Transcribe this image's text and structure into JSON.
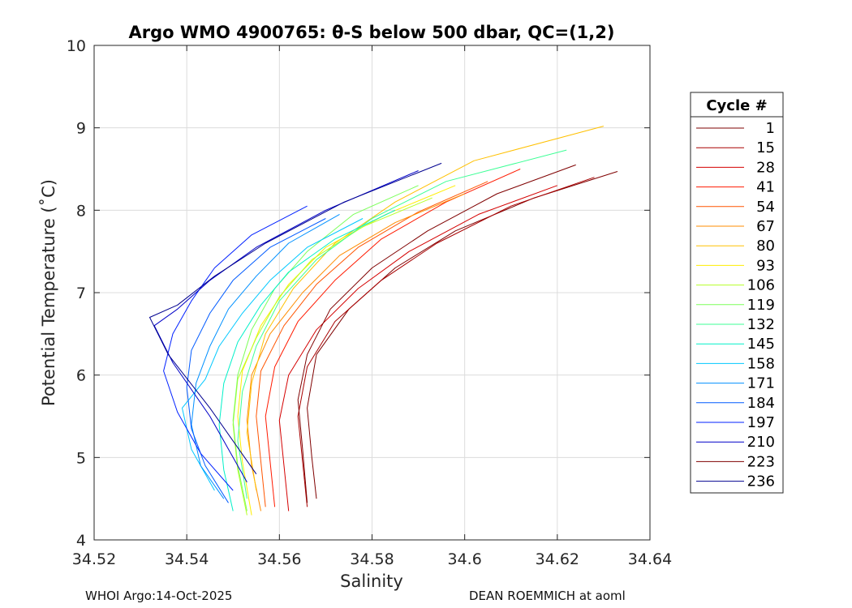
{
  "chart_data": {
    "type": "line",
    "title": "Argo WMO 4900765: θ-S below 500 dbar,  QC=(1,2)",
    "xlabel": "Salinity",
    "ylabel": "Potential Temperature (˚C)",
    "xlim": [
      34.52,
      34.64
    ],
    "ylim": [
      4,
      10
    ],
    "xticks": [
      34.52,
      34.54,
      34.56,
      34.58,
      34.6,
      34.62,
      34.64
    ],
    "xtick_labels": [
      "34.52",
      "34.54",
      "34.56",
      "34.58",
      "34.6",
      "34.62",
      "34.64"
    ],
    "yticks": [
      4,
      5,
      6,
      7,
      8,
      9,
      10
    ],
    "ytick_labels": [
      "4",
      "5",
      "6",
      "7",
      "8",
      "9",
      "10"
    ],
    "grid": true,
    "legend": {
      "title": "Cycle #",
      "placement": "right-outside",
      "entries": [
        {
          "label": "1",
          "color": "#7f0000"
        },
        {
          "label": "15",
          "color": "#a80000"
        },
        {
          "label": "28",
          "color": "#d40000"
        },
        {
          "label": "41",
          "color": "#ff1a00"
        },
        {
          "label": "54",
          "color": "#ff5500"
        },
        {
          "label": "67",
          "color": "#ff8c00"
        },
        {
          "label": "80",
          "color": "#ffc000"
        },
        {
          "label": "93",
          "color": "#ffee00"
        },
        {
          "label": "106",
          "color": "#b6ff28"
        },
        {
          "label": "119",
          "color": "#7cff5a"
        },
        {
          "label": "132",
          "color": "#3dff96"
        },
        {
          "label": "145",
          "color": "#00f0c8"
        },
        {
          "label": "158",
          "color": "#00c8ff"
        },
        {
          "label": "171",
          "color": "#0090ff"
        },
        {
          "label": "184",
          "color": "#005aff"
        },
        {
          "label": "197",
          "color": "#0020ff"
        },
        {
          "label": "210",
          "color": "#0000c8"
        },
        {
          "label": "223",
          "color": "#7f0000"
        },
        {
          "label": "236",
          "color": "#00008f"
        }
      ]
    },
    "series": [
      {
        "name": "1",
        "color": "#7f0000",
        "x": [
          34.633,
          34.615,
          34.598,
          34.585,
          34.575,
          34.568,
          34.566,
          34.567,
          34.568
        ],
        "y": [
          8.47,
          8.15,
          7.75,
          7.3,
          6.8,
          6.25,
          5.6,
          5.0,
          4.5
        ]
      },
      {
        "name": "15",
        "color": "#a80000",
        "x": [
          34.628,
          34.61,
          34.594,
          34.582,
          34.572,
          34.566,
          34.564,
          34.565,
          34.566
        ],
        "y": [
          8.4,
          8.05,
          7.6,
          7.15,
          6.65,
          6.1,
          5.5,
          4.95,
          4.4
        ]
      },
      {
        "name": "28",
        "color": "#d40000",
        "x": [
          34.62,
          34.603,
          34.588,
          34.577,
          34.568,
          34.562,
          34.56,
          34.561,
          34.562
        ],
        "y": [
          8.3,
          7.95,
          7.5,
          7.05,
          6.55,
          6.0,
          5.45,
          4.9,
          4.35
        ]
      },
      {
        "name": "41",
        "color": "#ff1a00",
        "x": [
          34.612,
          34.596,
          34.582,
          34.572,
          34.564,
          34.559,
          34.557,
          34.558,
          34.559
        ],
        "y": [
          8.5,
          8.1,
          7.65,
          7.15,
          6.65,
          6.1,
          5.5,
          4.95,
          4.4
        ]
      },
      {
        "name": "54",
        "color": "#ff5500",
        "x": [
          34.605,
          34.59,
          34.577,
          34.568,
          34.561,
          34.556,
          34.555,
          34.556,
          34.557
        ],
        "y": [
          8.35,
          7.98,
          7.55,
          7.1,
          6.6,
          6.05,
          5.5,
          4.95,
          4.4
        ]
      },
      {
        "name": "67",
        "color": "#ff8c00",
        "x": [
          34.6,
          34.585,
          34.573,
          34.565,
          34.558,
          34.554,
          34.553,
          34.554,
          34.556
        ],
        "y": [
          8.2,
          7.85,
          7.45,
          7.0,
          6.5,
          6.0,
          5.45,
          4.9,
          4.35
        ]
      },
      {
        "name": "80",
        "color": "#ffc000",
        "x": [
          34.63,
          34.602,
          34.585,
          34.572,
          34.563,
          34.557,
          34.554,
          34.553,
          34.555
        ],
        "y": [
          9.02,
          8.6,
          8.1,
          7.6,
          7.05,
          6.5,
          5.9,
          5.3,
          4.6
        ]
      },
      {
        "name": "93",
        "color": "#ffee00",
        "x": [
          34.598,
          34.583,
          34.57,
          34.562,
          34.556,
          34.552,
          34.551,
          34.552,
          34.554
        ],
        "y": [
          8.3,
          7.95,
          7.55,
          7.1,
          6.6,
          6.05,
          5.5,
          4.95,
          4.3
        ]
      },
      {
        "name": "106",
        "color": "#b6ff28",
        "x": [
          34.593,
          34.578,
          34.567,
          34.56,
          34.555,
          34.551,
          34.55,
          34.551,
          34.553
        ],
        "y": [
          8.15,
          7.8,
          7.4,
          6.95,
          6.45,
          5.95,
          5.4,
          4.85,
          4.3
        ]
      },
      {
        "name": "119",
        "color": "#7cff5a",
        "x": [
          34.59,
          34.576,
          34.566,
          34.559,
          34.554,
          34.551,
          34.55,
          34.551,
          34.553
        ],
        "y": [
          8.3,
          7.95,
          7.5,
          7.05,
          6.55,
          6.0,
          5.45,
          4.9,
          4.35
        ]
      },
      {
        "name": "132",
        "color": "#3dff96",
        "x": [
          34.622,
          34.596,
          34.58,
          34.568,
          34.56,
          34.555,
          34.552,
          34.551,
          34.553
        ],
        "y": [
          8.73,
          8.35,
          7.9,
          7.4,
          6.9,
          6.35,
          5.8,
          5.2,
          4.5
        ]
      },
      {
        "name": "145",
        "color": "#00f0c8",
        "x": [
          34.585,
          34.572,
          34.562,
          34.556,
          34.551,
          34.548,
          34.547,
          34.548,
          34.55
        ],
        "y": [
          8.0,
          7.65,
          7.25,
          6.85,
          6.4,
          5.9,
          5.4,
          4.85,
          4.35
        ]
      },
      {
        "name": "158",
        "color": "#00c8ff",
        "x": [
          34.578,
          34.566,
          34.558,
          34.552,
          34.547,
          34.544,
          34.539,
          34.541,
          34.546
        ],
        "y": [
          7.9,
          7.55,
          7.15,
          6.75,
          6.35,
          5.95,
          5.6,
          5.1,
          4.6
        ]
      },
      {
        "name": "171",
        "color": "#0090ff",
        "x": [
          34.573,
          34.562,
          34.555,
          34.549,
          34.545,
          34.542,
          34.541,
          34.543,
          34.548
        ],
        "y": [
          7.95,
          7.6,
          7.2,
          6.8,
          6.35,
          5.9,
          5.4,
          4.9,
          4.5
        ]
      },
      {
        "name": "184",
        "color": "#005aff",
        "x": [
          34.57,
          34.558,
          34.55,
          34.545,
          34.541,
          34.54,
          34.541,
          34.544,
          34.549
        ],
        "y": [
          7.9,
          7.55,
          7.15,
          6.75,
          6.3,
          5.85,
          5.35,
          4.9,
          4.45
        ]
      },
      {
        "name": "197",
        "color": "#0020ff",
        "x": [
          34.566,
          34.554,
          34.546,
          34.541,
          34.537,
          34.535,
          34.538,
          34.543,
          34.55
        ],
        "y": [
          8.05,
          7.7,
          7.3,
          6.9,
          6.5,
          6.05,
          5.55,
          5.05,
          4.6
        ]
      },
      {
        "name": "210",
        "color": "#0000c8",
        "x": [
          34.59,
          34.57,
          34.555,
          34.545,
          34.538,
          34.533,
          34.537,
          34.545,
          34.553
        ],
        "y": [
          8.48,
          8.0,
          7.55,
          7.15,
          6.8,
          6.6,
          6.15,
          5.5,
          4.7
        ]
      },
      {
        "name": "223",
        "color": "#7f0000",
        "x": [
          34.624,
          34.607,
          34.592,
          34.58,
          34.571,
          34.566,
          34.564,
          34.565,
          34.566
        ],
        "y": [
          8.55,
          8.2,
          7.75,
          7.3,
          6.8,
          6.25,
          5.7,
          5.1,
          4.45
        ]
      },
      {
        "name": "236",
        "color": "#00008f",
        "x": [
          34.595,
          34.574,
          34.557,
          34.546,
          34.538,
          34.532,
          34.536,
          34.545,
          34.555
        ],
        "y": [
          8.57,
          8.1,
          7.6,
          7.2,
          6.85,
          6.7,
          6.25,
          5.6,
          4.8
        ]
      }
    ]
  },
  "footer": {
    "left": "WHOI Argo:14-Oct-2025",
    "right": "DEAN ROEMMICH at aoml"
  }
}
